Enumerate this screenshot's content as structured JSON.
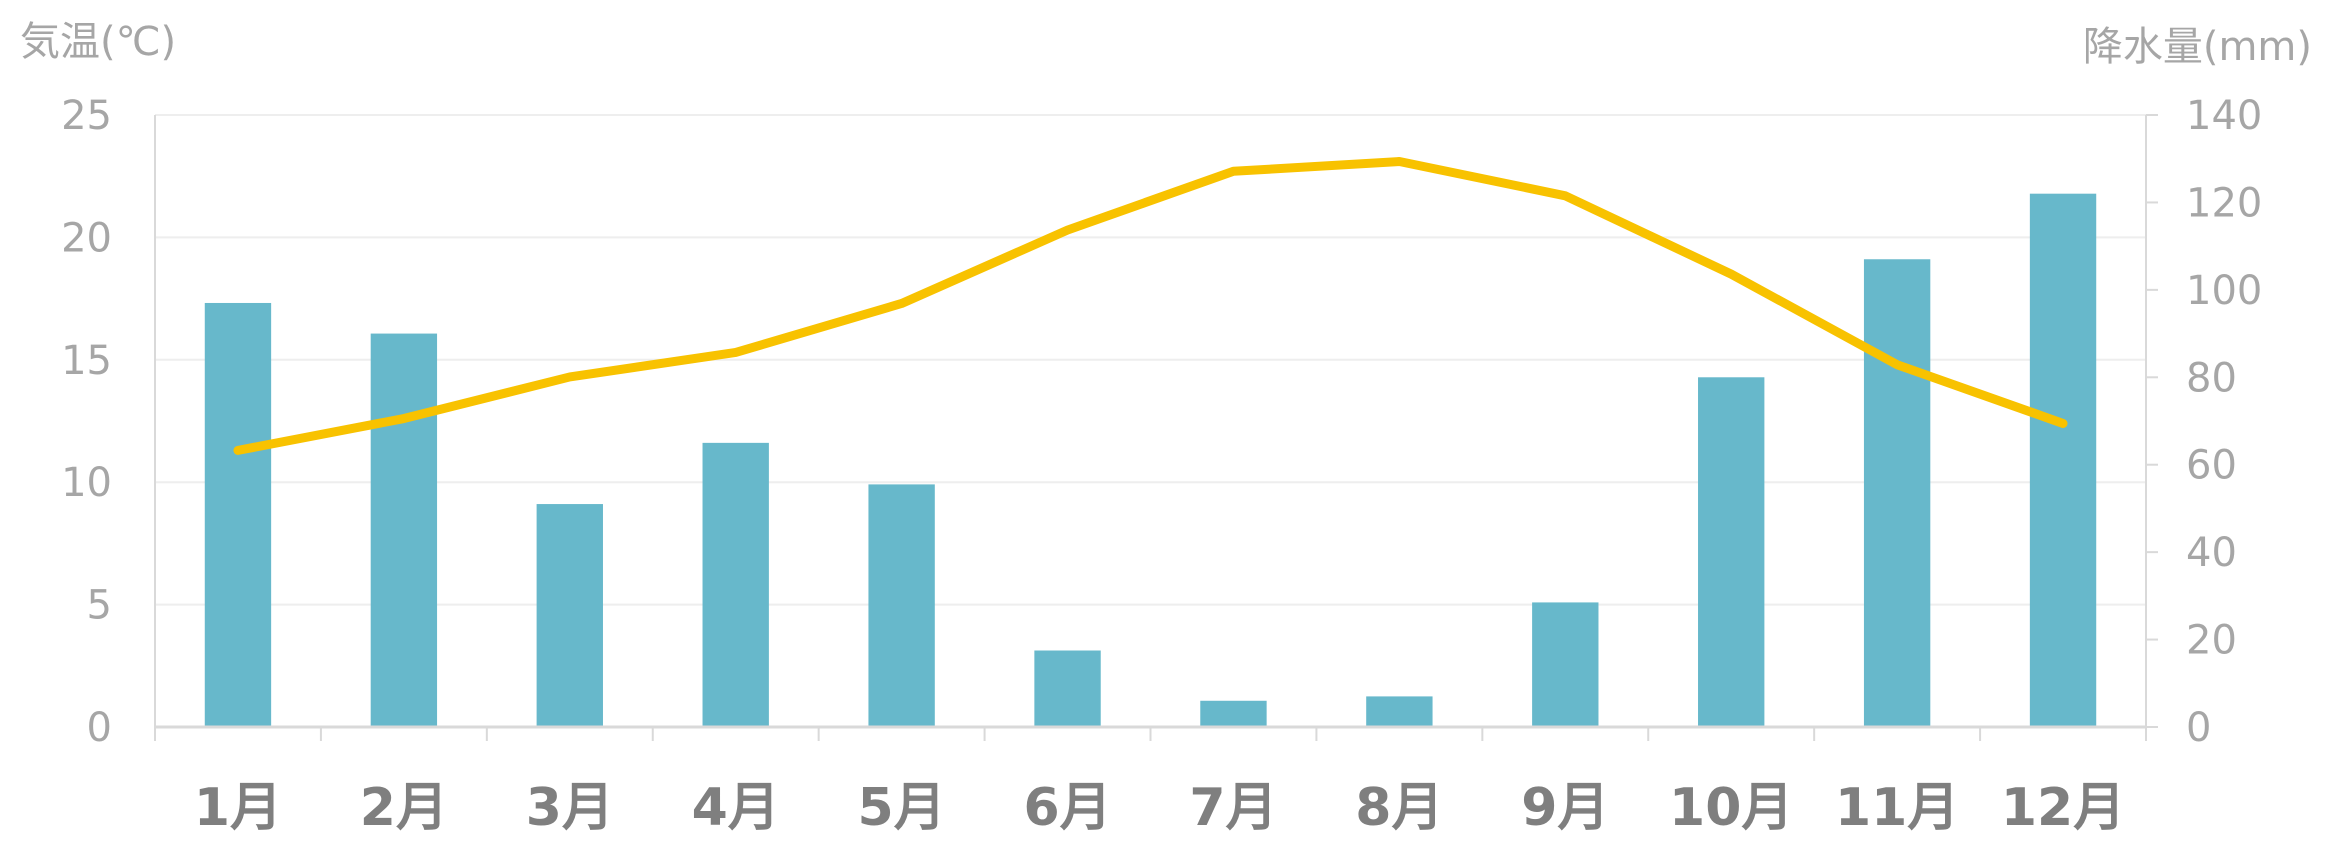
{
  "chart_data": {
    "type": "bar+line",
    "categories": [
      "1月",
      "2月",
      "3月",
      "4月",
      "5月",
      "6月",
      "7月",
      "8月",
      "9月",
      "10月",
      "11月",
      "12月"
    ],
    "series": [
      {
        "kind": "bar",
        "axis": "right",
        "values": [
          97,
          90,
          51,
          65,
          55.5,
          17.5,
          6,
          7,
          28.5,
          80,
          107,
          122
        ],
        "color": "#67b8cb"
      },
      {
        "kind": "line",
        "axis": "left",
        "values": [
          11.3,
          12.6,
          14.3,
          15.3,
          17.3,
          20.3,
          22.7,
          23.1,
          21.7,
          18.5,
          14.8,
          12.4
        ],
        "color": "#f8c200"
      }
    ],
    "ylabel": "気温(℃)",
    "y2label": "降水量(mm)",
    "ylim": [
      0,
      25
    ],
    "y2lim": [
      0,
      140
    ],
    "yticks": [
      "0",
      "5",
      "10",
      "15",
      "20",
      "25"
    ],
    "y2ticks": [
      "0",
      "20",
      "40",
      "60",
      "80",
      "100",
      "120",
      "140"
    ],
    "grid": true,
    "legend": "none"
  },
  "colors": {
    "grid": "#eeeeee",
    "axis": "#d9d9d9",
    "tick_text": "#a6a6a6",
    "category_text": "#7f7f7f"
  }
}
